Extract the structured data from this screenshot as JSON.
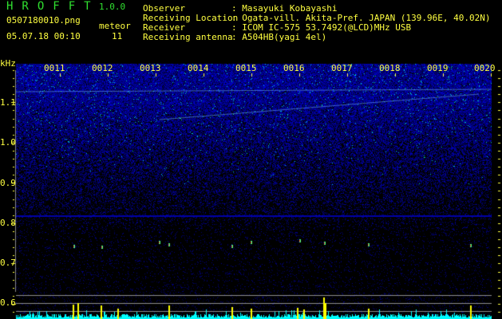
{
  "app": {
    "name": "HROFFT",
    "version": "1.0.0"
  },
  "file": {
    "name": "0507180010.png",
    "datetime": "05.07.18 00:10"
  },
  "meteor": {
    "label": "meteor",
    "count": "11"
  },
  "info": [
    {
      "key": "Observer",
      "value": ": Masayuki Kobayashi"
    },
    {
      "key": "Receiving Location",
      "value": ": Ogata-vill. Akita-Pref. JAPAN (139.96E, 40.02N)"
    },
    {
      "key": "Receiver",
      "value": ": ICOM IC-575 53.7492(@LCD)MHz USB"
    },
    {
      "key": "Receiving antenna",
      "value": ": A504HB(yagi 4el)"
    }
  ],
  "axis": {
    "y_unit": "kHz",
    "y_ticks": [
      "1.1",
      "1.0",
      "0.9",
      "0.8",
      "0.7",
      "0.6"
    ],
    "x_ticks": [
      "0011",
      "0012",
      "0013",
      "0014",
      "0015",
      "0016",
      "0017",
      "0018",
      "0019",
      "0020"
    ]
  },
  "colors": {
    "text": "#ffff40",
    "title": "#30e030",
    "histogram": "#00ffff",
    "meteor_spike": "#ffff00",
    "background_noise": "#1a1aff"
  }
}
